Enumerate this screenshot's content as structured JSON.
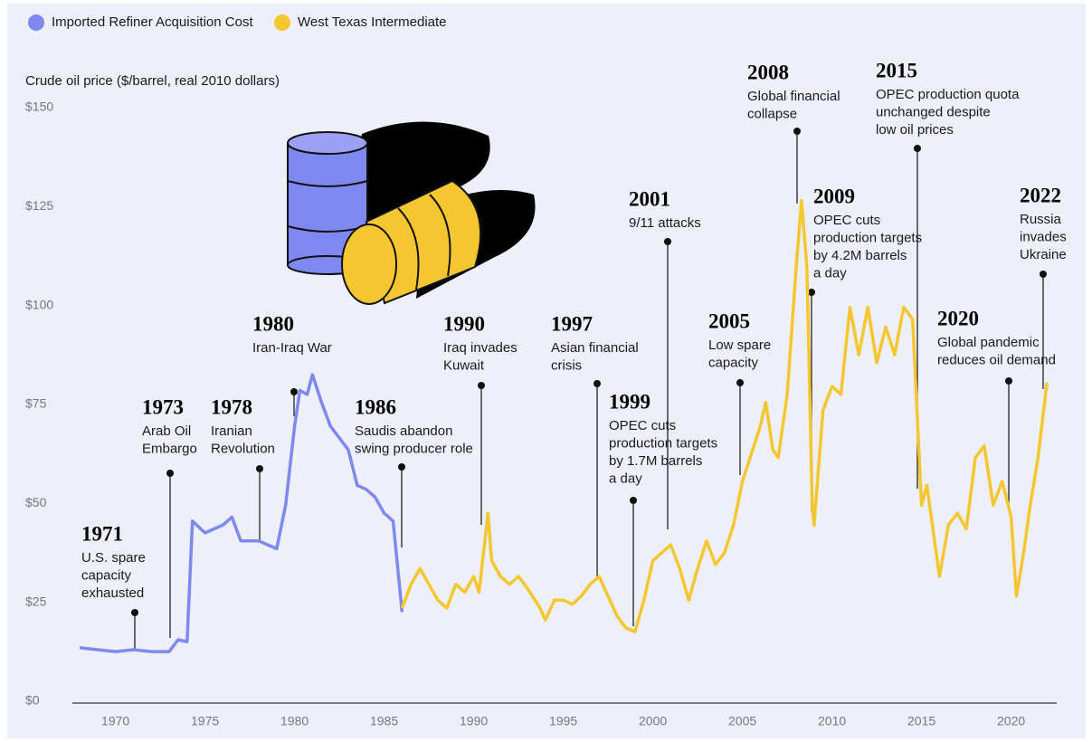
{
  "chart_data": {
    "type": "line",
    "y_axis_title": "Crude oil price ($/barrel, real 2010 dollars)",
    "xlim": [
      1968,
      2023
    ],
    "xticks": [
      1970,
      1975,
      1980,
      1985,
      1990,
      1995,
      2000,
      2005,
      2010,
      2015,
      2020
    ],
    "ylim": [
      0,
      150
    ],
    "yticks": [
      {
        "value": 0,
        "label": "$0"
      },
      {
        "value": 25,
        "label": "$25"
      },
      {
        "value": 50,
        "label": "$50"
      },
      {
        "value": 75,
        "label": "$75"
      },
      {
        "value": 100,
        "label": "$100"
      },
      {
        "value": 125,
        "label": "$125"
      },
      {
        "value": 150,
        "label": "$150"
      }
    ],
    "legend": "top-left",
    "series": [
      {
        "name": "Imported Refiner Acquisition Cost",
        "color": "#7f87f1",
        "x": [
          1968,
          1969,
          1970,
          1971,
          1972,
          1973,
          1973.5,
          1974,
          1974.3,
          1975,
          1976,
          1976.5,
          1977,
          1978,
          1978.5,
          1979,
          1979.5,
          1980,
          1980.3,
          1980.7,
          1981,
          1981.5,
          1982,
          1983,
          1983.5,
          1984,
          1984.5,
          1985,
          1985.5,
          1986
        ],
        "values": [
          14,
          13.5,
          13,
          13.5,
          13,
          13,
          16,
          15.5,
          46,
          43,
          45,
          47,
          41,
          41,
          40,
          39,
          50,
          70,
          79,
          78,
          83,
          76,
          70,
          64,
          55,
          54,
          52,
          48,
          46,
          23
        ]
      },
      {
        "name": "West Texas Intermediate",
        "color": "#f4c630",
        "x": [
          1986,
          1986.5,
          1987,
          1987.5,
          1988,
          1988.5,
          1989,
          1989.5,
          1990,
          1990.3,
          1990.8,
          1991,
          1991.5,
          1992,
          1992.5,
          1993,
          1993.7,
          1994,
          1994.5,
          1995,
          1995.5,
          1996,
          1996.5,
          1997,
          1997.5,
          1998,
          1998.5,
          1999,
          1999.5,
          2000,
          2000.5,
          2001,
          2001.5,
          2002,
          2002.5,
          2003,
          2003.5,
          2004,
          2004.5,
          2005,
          2005.5,
          2006,
          2006.3,
          2006.7,
          2007,
          2007.5,
          2008,
          2008.3,
          2008.6,
          2008.9,
          2009,
          2009.5,
          2010,
          2010.5,
          2011,
          2011.5,
          2012,
          2012.5,
          2013,
          2013.5,
          2014,
          2014.5,
          2015,
          2015.3,
          2016,
          2016.5,
          2017,
          2017.5,
          2018,
          2018.5,
          2019,
          2019.5,
          2020,
          2020.3,
          2020.7,
          2021,
          2021.5,
          2022
        ],
        "values": [
          24,
          30,
          34,
          30,
          26,
          24,
          30,
          28,
          32,
          28,
          48,
          36,
          32,
          30,
          32,
          29,
          24,
          21,
          26,
          26,
          25,
          27,
          30,
          32,
          27,
          22,
          19,
          18,
          26,
          36,
          38,
          40,
          34,
          26,
          34,
          41,
          35,
          38,
          45,
          56,
          63,
          70,
          76,
          64,
          62,
          78,
          110,
          127,
          110,
          50,
          45,
          74,
          80,
          78,
          100,
          88,
          100,
          86,
          95,
          88,
          100,
          97,
          50,
          55,
          32,
          45,
          48,
          44,
          62,
          65,
          50,
          56,
          47,
          27,
          38,
          48,
          62,
          81
        ]
      }
    ],
    "annotations": [
      {
        "year": "1971",
        "text": [
          "U.S. spare",
          "capacity",
          "exhausted"
        ]
      },
      {
        "year": "1973",
        "text": [
          "Arab Oil",
          "Embargo"
        ]
      },
      {
        "year": "1978",
        "text": [
          "Iranian",
          "Revolution"
        ]
      },
      {
        "year": "1980",
        "text": [
          "Iran-Iraq War"
        ]
      },
      {
        "year": "1986",
        "text": [
          "Saudis abandon",
          "swing producer role"
        ]
      },
      {
        "year": "1990",
        "text": [
          "Iraq invades",
          "Kuwait"
        ]
      },
      {
        "year": "1997",
        "text": [
          "Asian financial",
          "crisis"
        ]
      },
      {
        "year": "1999",
        "text": [
          "OPEC cuts",
          "production targets",
          "by 1.7M barrels",
          "a day"
        ]
      },
      {
        "year": "2001",
        "text": [
          "9/11 attacks"
        ]
      },
      {
        "year": "2005",
        "text": [
          "Low spare",
          "capacity"
        ]
      },
      {
        "year": "2008",
        "text": [
          "Global financial",
          "collapse"
        ]
      },
      {
        "year": "2009",
        "text": [
          "OPEC cuts",
          "production targets",
          "by 4.2M barrels",
          "a day"
        ]
      },
      {
        "year": "2015",
        "text": [
          "OPEC production quota",
          "unchanged despite",
          "low oil prices"
        ]
      },
      {
        "year": "2020",
        "text": [
          "Global pandemic",
          "reduces oil demand"
        ]
      },
      {
        "year": "2022",
        "text": [
          "Russia",
          "invades",
          "Ukraine"
        ]
      }
    ]
  }
}
